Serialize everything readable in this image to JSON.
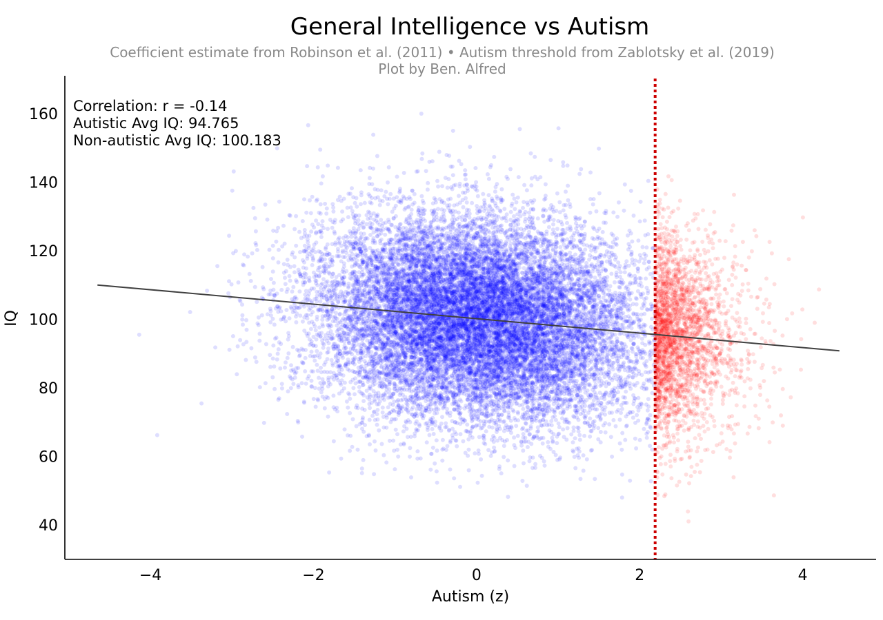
{
  "chart_data": {
    "type": "scatter",
    "title": "General Intelligence vs Autism",
    "subtitle_line1": "Coefficient estimate from Robinson et al. (2011) • Autism threshold from Zablotsky et al. (2019)",
    "subtitle_line2": "Plot by Ben. Alfred",
    "xlabel": "Autism (z)",
    "ylabel": "IQ",
    "xlim": [
      -5.05,
      4.9
    ],
    "ylim": [
      30,
      171
    ],
    "x_ticks": [
      -4,
      -2,
      0,
      2,
      4
    ],
    "x_tick_labels": [
      "−4",
      "−2",
      "0",
      "2",
      "4"
    ],
    "y_ticks": [
      40,
      60,
      80,
      100,
      120,
      140,
      160
    ],
    "y_tick_labels": [
      "40",
      "60",
      "80",
      "100",
      "120",
      "140",
      "160"
    ],
    "grid": false,
    "annotations": [
      "Correlation: r = -0.14",
      "Autistic Avg IQ: 94.765",
      "Non-autistic Avg IQ: 100.183"
    ],
    "correlation": -0.14,
    "autistic_avg_iq": 94.765,
    "non_autistic_avg_iq": 100.183,
    "threshold_x": 2.19,
    "regression_line": {
      "x": [
        -4.65,
        4.45
      ],
      "y": [
        110.0,
        90.8
      ]
    },
    "series": [
      {
        "group": "non-autistic",
        "color": "#0000ff",
        "x_distribution": "normal(0,1) truncated below 2.19",
        "iq_mean": 100.183,
        "iq_sd": 15
      },
      {
        "group": "autistic",
        "color": "#ff0000",
        "x_distribution": "normal(0,1) truncated above 2.19",
        "iq_mean": 94.765,
        "iq_sd": 15
      }
    ],
    "colors": {
      "regression": "#404040",
      "threshold": "#cc0000",
      "axes": "#000000"
    }
  }
}
